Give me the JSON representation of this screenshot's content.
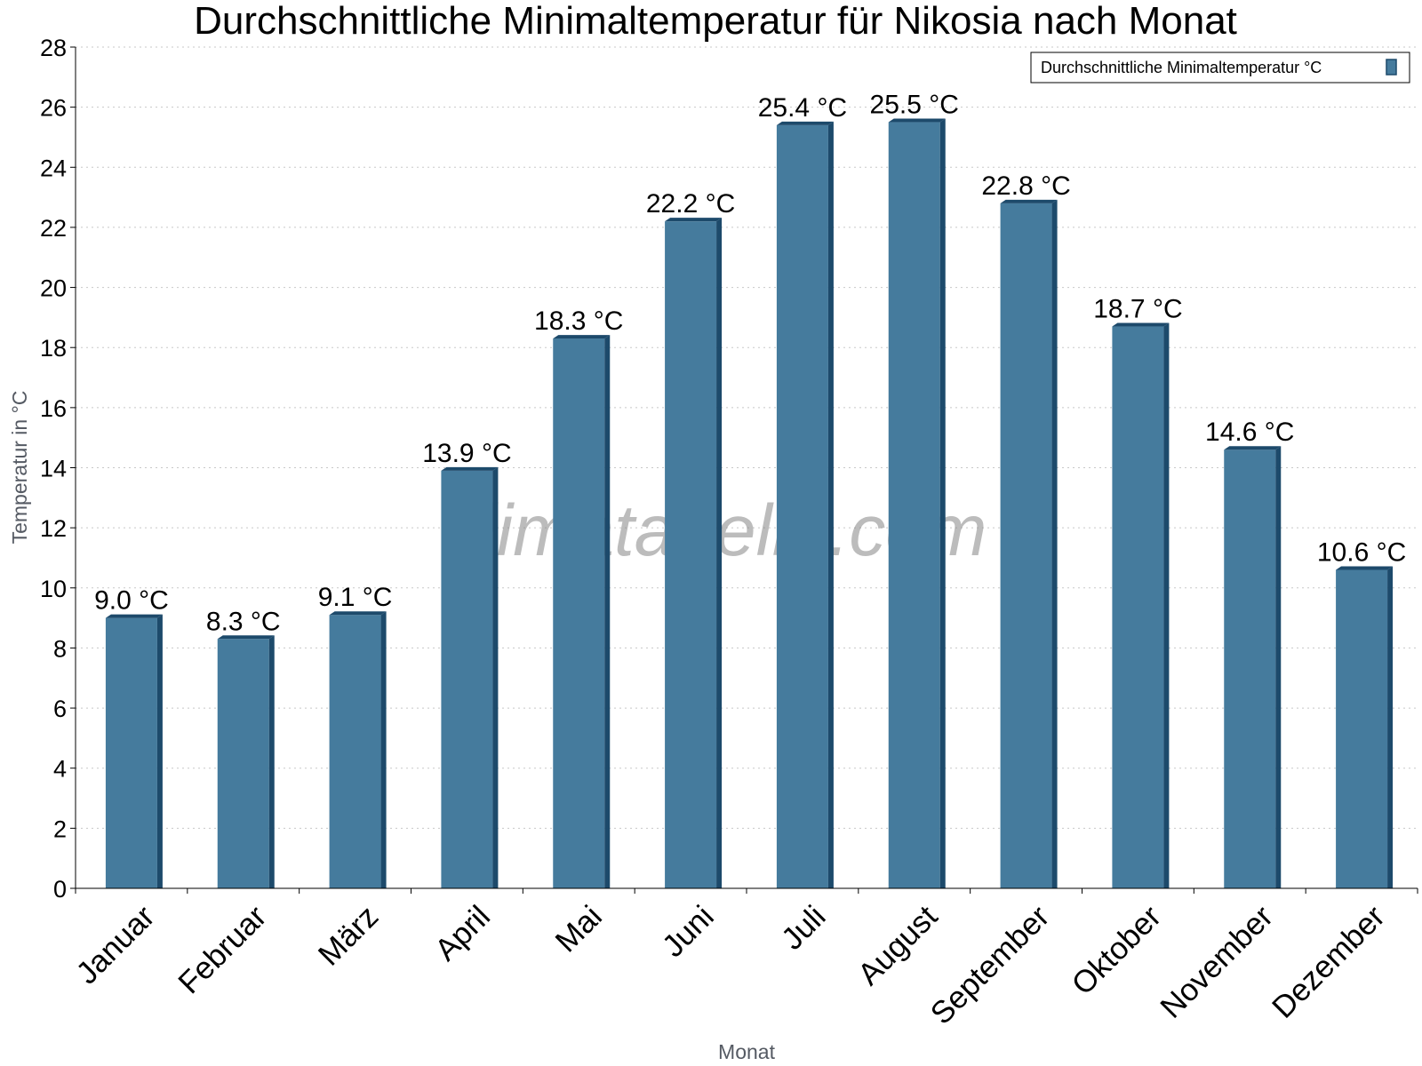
{
  "chart_data": {
    "type": "bar",
    "title": "Durchschnittliche Minimaltemperatur für Nikosia nach Monat",
    "xlabel": "Monat",
    "ylabel": "Temperatur in °C",
    "categories": [
      "Januar",
      "Februar",
      "März",
      "April",
      "Mai",
      "Juni",
      "Juli",
      "August",
      "September",
      "Oktober",
      "November",
      "Dezember"
    ],
    "series": [
      {
        "name": "Durchschnittliche Minimaltemperatur °C",
        "values": [
          9.0,
          8.3,
          9.1,
          13.9,
          18.3,
          22.2,
          25.4,
          25.5,
          22.8,
          18.7,
          14.6,
          10.6
        ],
        "labels": [
          "9.0 °C",
          "8.3 °C",
          "9.1 °C",
          "13.9 °C",
          "18.3 °C",
          "22.2 °C",
          "25.4 °C",
          "25.5 °C",
          "22.8 °C",
          "18.7 °C",
          "14.6 °C",
          "10.6 °C"
        ]
      }
    ],
    "ylim": [
      0,
      28
    ],
    "yticks": [
      "0",
      "2",
      "4",
      "6",
      "8",
      "10",
      "12",
      "14",
      "16",
      "18",
      "20",
      "22",
      "24",
      "26",
      "28"
    ],
    "grid": true,
    "legend_position": "top-right",
    "colors": {
      "bar": "#457b9d",
      "bar_dark": "#1d4a6b"
    },
    "watermark": "klimatabelle.com"
  }
}
